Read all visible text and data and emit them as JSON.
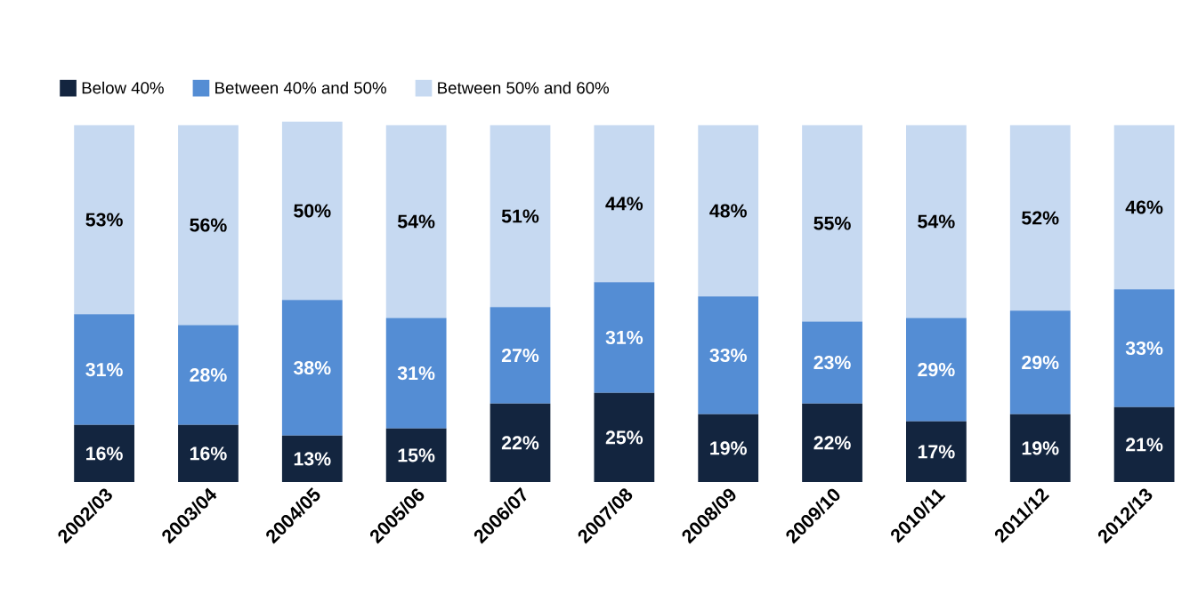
{
  "chart_data": {
    "type": "bar",
    "stacked": true,
    "legend": "top left",
    "categories": [
      "2002/03",
      "2003/04",
      "2004/05",
      "2005/06",
      "2006/07",
      "2007/08",
      "2008/09",
      "2009/10",
      "2010/11",
      "2011/12",
      "2012/13"
    ],
    "series": [
      {
        "name": "Below 40%",
        "color": "#13253f",
        "values": [
          16,
          16,
          13,
          15,
          22,
          25,
          19,
          22,
          17,
          19,
          21
        ],
        "value_labels": [
          "16%",
          "16%",
          "13%",
          "15%",
          "22%",
          "25%",
          "19%",
          "22%",
          "17%",
          "19%",
          "21%"
        ]
      },
      {
        "name": "Between 40% and 50%",
        "color": "#548dd4",
        "values": [
          31,
          28,
          38,
          31,
          27,
          31,
          33,
          23,
          29,
          29,
          33
        ],
        "value_labels": [
          "31%",
          "28%",
          "38%",
          "31%",
          "27%",
          "31%",
          "33%",
          "23%",
          "29%",
          "29%",
          "33%"
        ]
      },
      {
        "name": "Between 50% and 60%",
        "color": "#c6d9f1",
        "values": [
          53,
          56,
          50,
          54,
          51,
          44,
          48,
          55,
          54,
          52,
          46
        ],
        "value_labels": [
          "53%",
          "56%",
          "50%",
          "54%",
          "51%",
          "44%",
          "48%",
          "55%",
          "54%",
          "52%",
          "46%"
        ]
      }
    ]
  }
}
